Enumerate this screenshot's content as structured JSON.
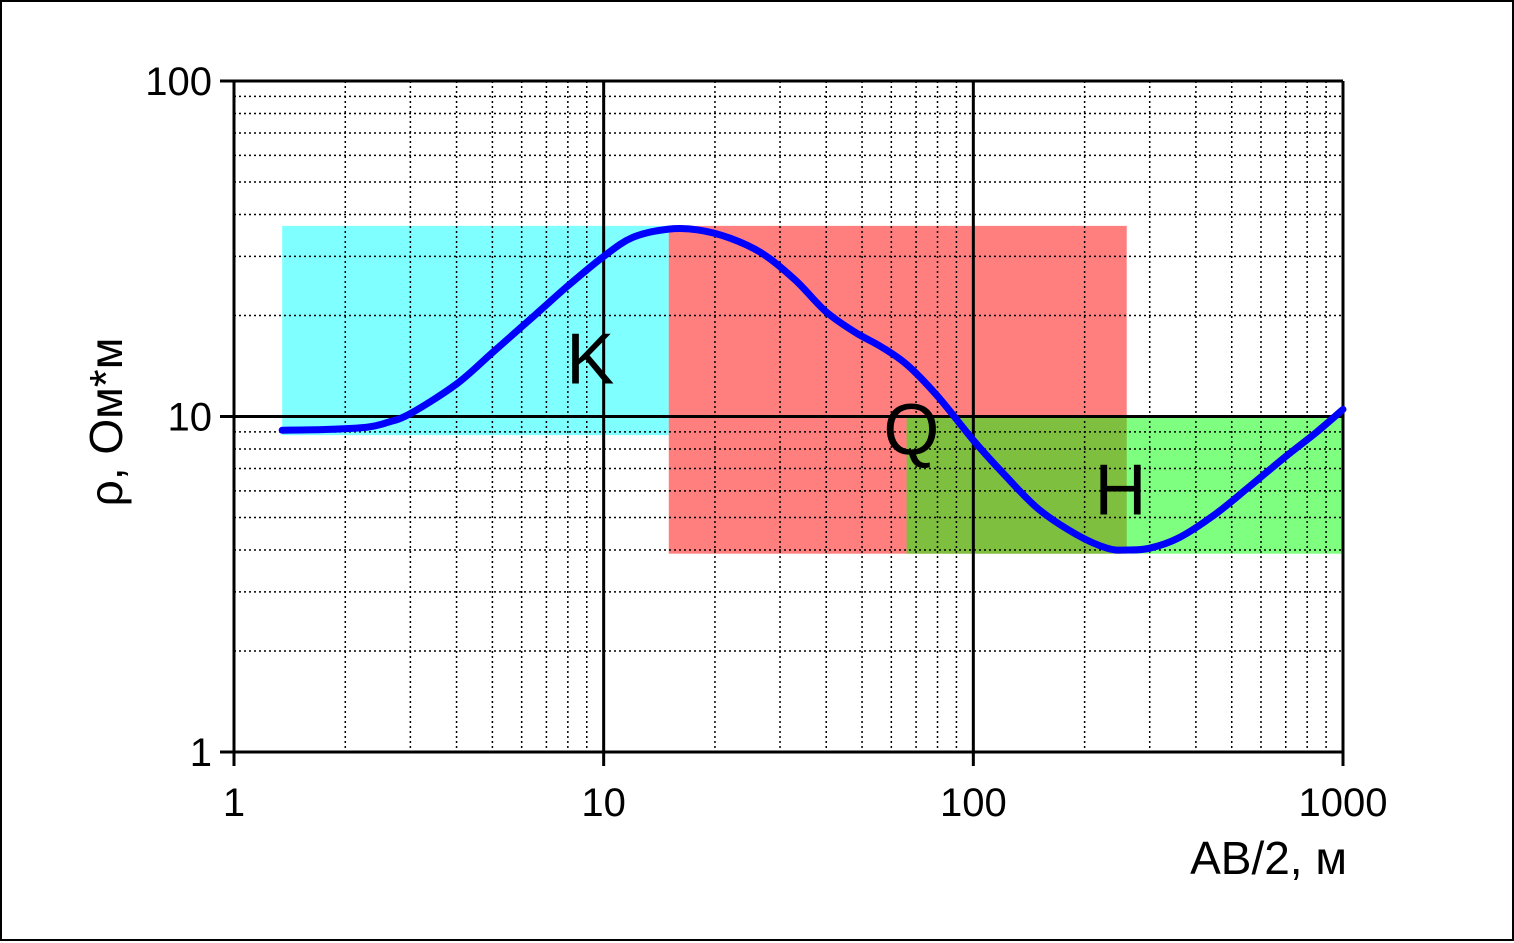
{
  "chart_data": {
    "type": "line",
    "x_scale": "log",
    "y_scale": "log",
    "xlim": [
      1,
      1000
    ],
    "ylim": [
      1,
      100
    ],
    "grid": true,
    "x_ticks": [
      {
        "value": 1,
        "label": "1"
      },
      {
        "value": 10,
        "label": "10"
      },
      {
        "value": 100,
        "label": "100"
      },
      {
        "value": 1000,
        "label": "1000"
      }
    ],
    "y_ticks": [
      {
        "value": 1,
        "label": "1"
      },
      {
        "value": 10,
        "label": "10"
      },
      {
        "value": 100,
        "label": "100"
      }
    ],
    "xlabel": "AB/2, м",
    "ylabel": "ρ, Ом*м",
    "curve": {
      "color": "#0000ff",
      "x": [
        1.35,
        1.8,
        2.3,
        2.6,
        3.0,
        4.0,
        5.0,
        6.5,
        8.0,
        10.0,
        12.0,
        15.0,
        18.0,
        22.0,
        27.0,
        33.0,
        40.0,
        48.0,
        56.0,
        66.0,
        80.0,
        100.0,
        120.0,
        150.0,
        190.0,
        230.0,
        260.0,
        300.0,
        360.0,
        450.0,
        560.0,
        700.0,
        850.0,
        1000.0
      ],
      "y": [
        9.1,
        9.15,
        9.3,
        9.6,
        10.2,
        12.5,
        15.5,
        20.0,
        24.5,
        30.0,
        34.2,
        36.2,
        36.0,
        34.0,
        30.5,
        25.5,
        20.5,
        17.8,
        16.2,
        14.3,
        11.5,
        8.5,
        6.8,
        5.3,
        4.45,
        4.05,
        4.0,
        4.05,
        4.35,
        5.1,
        6.2,
        7.6,
        9.0,
        10.5
      ]
    },
    "regions": [
      {
        "label": "K",
        "color": "#00ffff",
        "opacity": 0.5,
        "x_range": [
          1.35,
          15.0
        ],
        "y_range": [
          8.8,
          37.0
        ],
        "label_at": [
          9.2,
          15.0
        ]
      },
      {
        "label": "Q",
        "color": "#ff0000",
        "opacity": 0.5,
        "x_range": [
          15.0,
          260.0
        ],
        "y_range": [
          3.9,
          37.0
        ],
        "label_at": [
          68.0,
          9.2
        ]
      },
      {
        "label": "H",
        "color": "#00ff00",
        "opacity": 0.5,
        "x_range": [
          66.0,
          1000.0
        ],
        "y_range": [
          3.9,
          10.0
        ],
        "label_at": [
          250.0,
          6.1
        ]
      }
    ]
  }
}
